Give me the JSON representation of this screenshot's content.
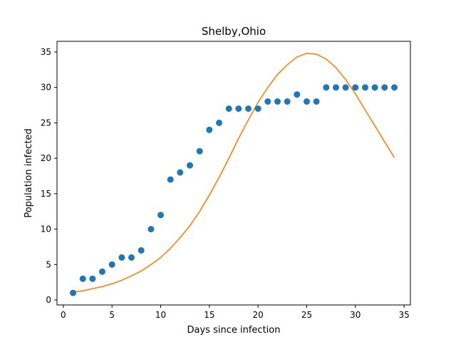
{
  "chart_data": {
    "type": "scatter",
    "title": "Shelby,Ohio",
    "xlabel": "Days since infection",
    "ylabel": "Population infected",
    "xlim": [
      -0.65,
      35.65
    ],
    "ylim": [
      -0.7,
      36.5
    ],
    "xticks": [
      0,
      5,
      10,
      15,
      20,
      25,
      30,
      35
    ],
    "yticks": [
      0,
      5,
      10,
      15,
      20,
      25,
      30,
      35
    ],
    "grid": false,
    "legend": "none",
    "series": [
      {
        "kind": "scatter",
        "color": "#1f77b4",
        "x": [
          1,
          2,
          3,
          4,
          5,
          6,
          7,
          8,
          9,
          10,
          11,
          12,
          13,
          14,
          15,
          16,
          17,
          18,
          19,
          20,
          21,
          22,
          23,
          24,
          25,
          26,
          27,
          28,
          29,
          30,
          31,
          32,
          33,
          34
        ],
        "y": [
          1,
          3,
          3,
          4,
          5,
          6,
          6,
          7,
          10,
          12,
          17,
          18,
          19,
          21,
          24,
          25,
          27,
          27,
          27,
          27,
          28,
          28,
          28,
          29,
          28,
          28,
          30,
          30,
          30,
          30,
          30,
          30,
          30,
          30
        ]
      },
      {
        "kind": "line",
        "color": "#ff7f0e",
        "x": [
          1,
          2,
          3,
          4,
          5,
          6,
          7,
          8,
          9,
          10,
          11,
          12,
          13,
          14,
          15,
          16,
          17,
          18,
          19,
          20,
          21,
          22,
          23,
          24,
          25,
          26,
          27,
          28,
          29,
          30,
          31,
          32,
          33,
          34
        ],
        "y": [
          1.1,
          1.3,
          1.6,
          1.9,
          2.3,
          2.8,
          3.4,
          4.1,
          5.0,
          6.0,
          7.3,
          8.8,
          10.5,
          12.5,
          14.8,
          17.3,
          20.0,
          22.8,
          25.4,
          27.9,
          30.0,
          31.8,
          33.2,
          34.3,
          34.8,
          34.7,
          34.0,
          32.8,
          31.1,
          29.1,
          26.8,
          24.6,
          22.3,
          20.1
        ]
      }
    ]
  }
}
